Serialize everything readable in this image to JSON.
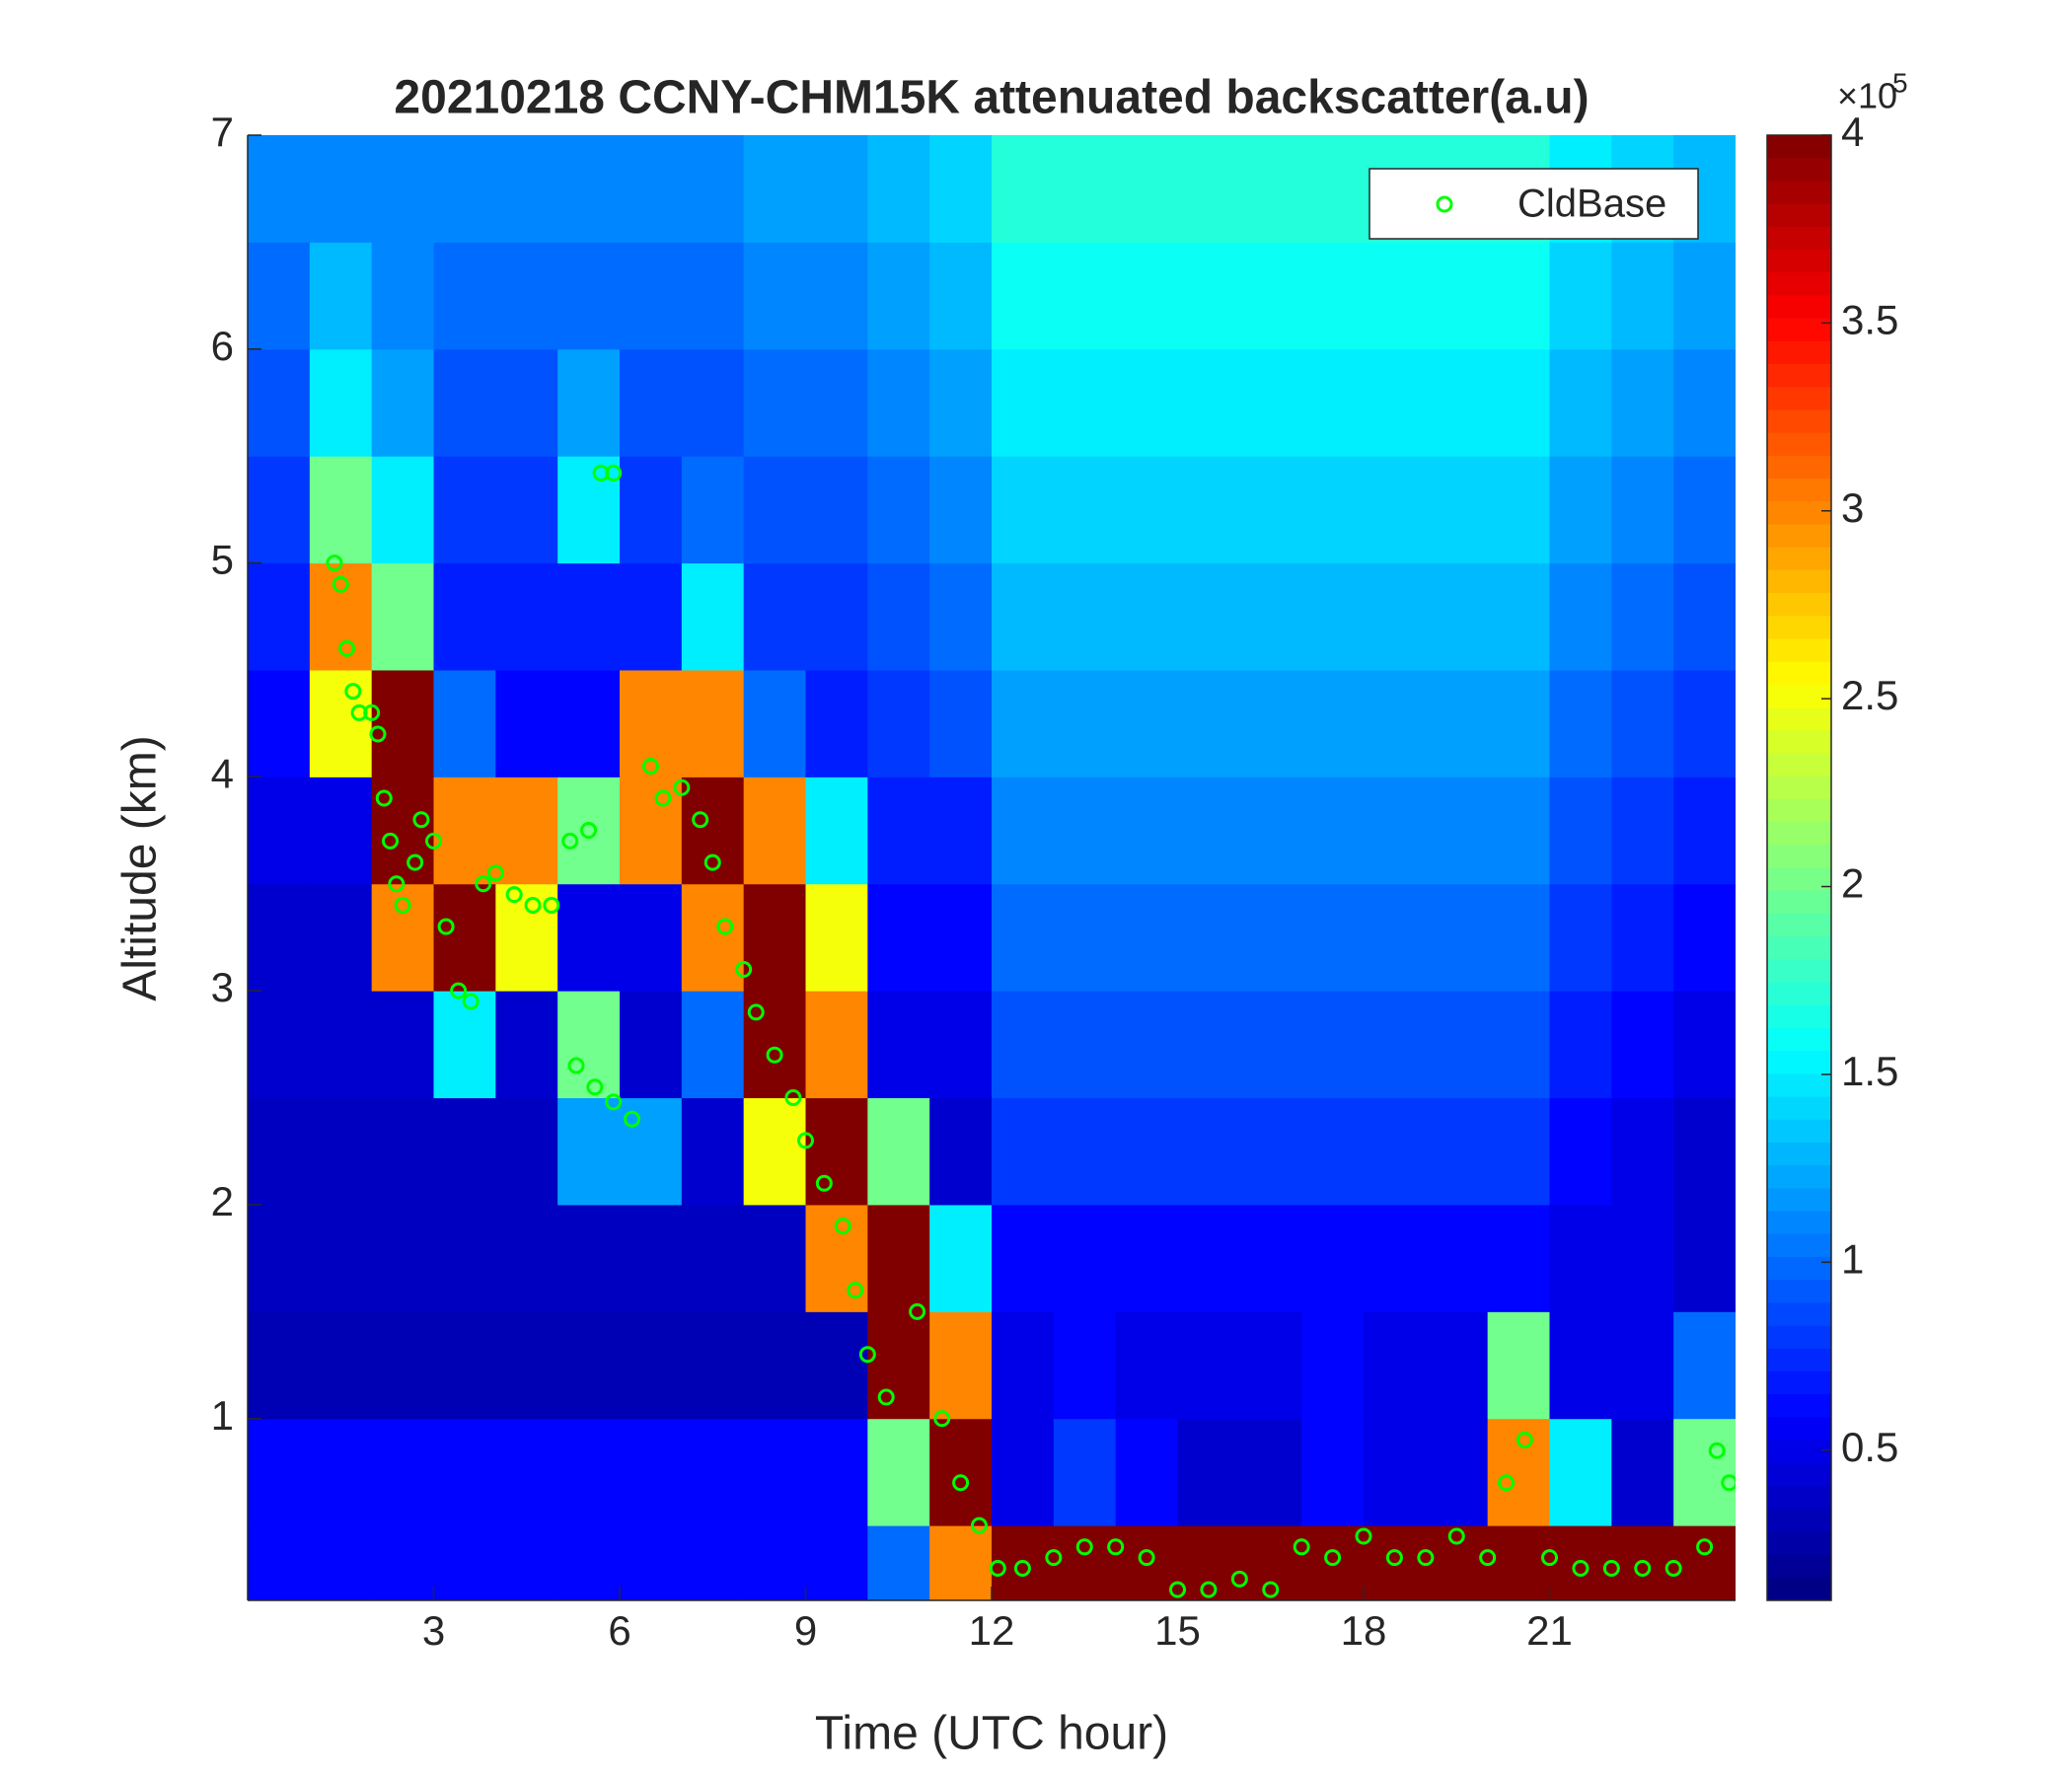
{
  "chart_data": {
    "type": "heatmap",
    "title": "20210218 CCNY-CHM15K attenuated backscatter(a.u)",
    "x_label": "Time (UTC hour)",
    "y_label": "Altitude (km)",
    "xlim": [
      0,
      24
    ],
    "ylim": [
      0.15,
      7
    ],
    "xticks": [
      3,
      6,
      9,
      12,
      15,
      18,
      21
    ],
    "yticks": [
      1,
      2,
      3,
      4,
      5,
      6,
      7
    ],
    "colormap": "jet",
    "clim": [
      0.1,
      4
    ],
    "cticks": [
      0.5,
      1,
      1.5,
      2,
      2.5,
      3,
      3.5,
      4
    ],
    "colorbar_multiplier_base": "×10",
    "colorbar_multiplier_exponent": "5",
    "x_edges": [
      0,
      1,
      2,
      3,
      4,
      5,
      6,
      7,
      8,
      9,
      10,
      11,
      12,
      13,
      14,
      15,
      16,
      17,
      18,
      19,
      20,
      21,
      22,
      23,
      24
    ],
    "y_edges": [
      0.15,
      0.5,
      1,
      1.5,
      2,
      2.5,
      3,
      3.5,
      4,
      4.5,
      5,
      5.5,
      6,
      6.5,
      7
    ],
    "z": [
      [
        0.6,
        0.6,
        0.6,
        0.6,
        0.6,
        0.6,
        0.6,
        0.6,
        0.6,
        0.6,
        1.0,
        3,
        4,
        4,
        4,
        4,
        4,
        4,
        4,
        4,
        4,
        4,
        4,
        4
      ],
      [
        0.6,
        0.6,
        0.6,
        0.6,
        0.6,
        0.6,
        0.6,
        0.6,
        0.6,
        0.6,
        2,
        4,
        0.5,
        0.8,
        0.6,
        0.4,
        0.4,
        0.6,
        0.5,
        0.5,
        3,
        1.5,
        0.4,
        2
      ],
      [
        0.3,
        0.3,
        0.3,
        0.3,
        0.3,
        0.3,
        0.3,
        0.3,
        0.3,
        0.3,
        4,
        3,
        0.5,
        0.6,
        0.5,
        0.5,
        0.5,
        0.6,
        0.5,
        0.5,
        2,
        0.5,
        0.5,
        1
      ],
      [
        0.35,
        0.35,
        0.35,
        0.35,
        0.35,
        0.35,
        0.35,
        0.35,
        0.35,
        3,
        4,
        1.5,
        0.6,
        0.6,
        0.6,
        0.6,
        0.6,
        0.6,
        0.6,
        0.6,
        0.6,
        0.5,
        0.5,
        0.4
      ],
      [
        0.35,
        0.35,
        0.35,
        0.35,
        0.35,
        1.2,
        1.2,
        0.4,
        2.5,
        4,
        2,
        0.4,
        0.8,
        0.8,
        0.8,
        0.8,
        0.8,
        0.8,
        0.8,
        0.8,
        0.8,
        0.6,
        0.5,
        0.4
      ],
      [
        0.4,
        0.4,
        0.4,
        1.5,
        0.4,
        2,
        0.4,
        1,
        4,
        3,
        0.5,
        0.5,
        0.9,
        0.9,
        0.9,
        0.9,
        0.9,
        0.9,
        0.9,
        0.9,
        0.9,
        0.7,
        0.6,
        0.5
      ],
      [
        0.4,
        0.4,
        3,
        4,
        2.5,
        0.5,
        0.5,
        3,
        4,
        2.5,
        0.6,
        0.6,
        1.0,
        1.0,
        1.0,
        1.0,
        1.0,
        1.0,
        1.0,
        1.0,
        1.0,
        0.8,
        0.7,
        0.6
      ],
      [
        0.5,
        0.5,
        4,
        3,
        3,
        2,
        3,
        4,
        3,
        1.5,
        0.7,
        0.7,
        1.1,
        1.1,
        1.1,
        1.1,
        1.1,
        1.1,
        1.1,
        1.1,
        1.1,
        0.9,
        0.8,
        0.7
      ],
      [
        0.6,
        2.5,
        4,
        1,
        0.6,
        0.6,
        3,
        3,
        1,
        0.7,
        0.8,
        0.9,
        1.2,
        1.2,
        1.2,
        1.2,
        1.2,
        1.2,
        1.2,
        1.2,
        1.2,
        1.0,
        0.9,
        0.8
      ],
      [
        0.7,
        3,
        2,
        0.7,
        0.7,
        0.7,
        0.7,
        1.5,
        0.8,
        0.8,
        0.9,
        1.0,
        1.3,
        1.3,
        1.3,
        1.3,
        1.3,
        1.3,
        1.3,
        1.3,
        1.3,
        1.1,
        1.0,
        0.9
      ],
      [
        0.8,
        2,
        1.5,
        0.8,
        0.8,
        1.5,
        0.8,
        1,
        0.9,
        0.9,
        1.0,
        1.1,
        1.4,
        1.4,
        1.4,
        1.4,
        1.4,
        1.4,
        1.4,
        1.4,
        1.4,
        1.2,
        1.1,
        1.0
      ],
      [
        0.9,
        1.5,
        1.2,
        0.9,
        0.9,
        1.2,
        0.9,
        0.9,
        1.0,
        1.0,
        1.1,
        1.2,
        1.5,
        1.5,
        1.5,
        1.5,
        1.5,
        1.5,
        1.5,
        1.5,
        1.5,
        1.3,
        1.2,
        1.1
      ],
      [
        1.0,
        1.3,
        1.1,
        1.0,
        1.0,
        1.0,
        1.0,
        1.0,
        1.1,
        1.1,
        1.2,
        1.3,
        1.6,
        1.6,
        1.6,
        1.6,
        1.6,
        1.6,
        1.6,
        1.6,
        1.6,
        1.4,
        1.3,
        1.2
      ],
      [
        1.1,
        1.1,
        1.1,
        1.1,
        1.1,
        1.1,
        1.1,
        1.1,
        1.2,
        1.2,
        1.3,
        1.4,
        1.7,
        1.7,
        1.7,
        1.7,
        1.7,
        1.7,
        1.7,
        1.7,
        1.7,
        1.5,
        1.4,
        1.3
      ]
    ],
    "legend_position": "northeast",
    "series": [
      {
        "name": "CldBase",
        "type": "scatter",
        "color": "#00ff00",
        "x": [
          1.4,
          1.5,
          1.6,
          1.7,
          1.8,
          2.0,
          2.1,
          2.2,
          2.3,
          2.4,
          2.5,
          2.7,
          2.8,
          3.0,
          3.2,
          3.4,
          3.6,
          3.8,
          4.0,
          4.3,
          4.6,
          4.9,
          5.2,
          5.5,
          5.7,
          5.9,
          5.3,
          5.6,
          5.9,
          6.2,
          6.5,
          6.7,
          7.0,
          7.3,
          7.5,
          7.7,
          8.0,
          8.2,
          8.5,
          8.8,
          9.0,
          9.3,
          9.6,
          9.8,
          10.0,
          10.3,
          10.8,
          11.2,
          11.5,
          11.8,
          12.1,
          12.5,
          13.0,
          13.5,
          14.0,
          14.5,
          15.0,
          15.5,
          16.0,
          16.5,
          17.0,
          17.5,
          18.0,
          18.5,
          19.0,
          19.5,
          20.0,
          20.3,
          20.6,
          21.0,
          21.5,
          22.0,
          22.5,
          23.0,
          23.5,
          23.7,
          23.9
        ],
        "y": [
          5.0,
          4.9,
          4.6,
          4.4,
          4.3,
          4.3,
          4.2,
          3.9,
          3.7,
          3.5,
          3.4,
          3.6,
          3.8,
          3.7,
          3.3,
          3.0,
          2.95,
          3.5,
          3.55,
          3.45,
          3.4,
          3.4,
          3.7,
          3.75,
          5.42,
          5.42,
          2.65,
          2.55,
          2.48,
          2.4,
          4.05,
          3.9,
          3.95,
          3.8,
          3.6,
          3.3,
          3.1,
          2.9,
          2.7,
          2.5,
          2.3,
          2.1,
          1.9,
          1.6,
          1.3,
          1.1,
          1.5,
          1.0,
          0.7,
          0.5,
          0.3,
          0.3,
          0.35,
          0.4,
          0.4,
          0.35,
          0.2,
          0.2,
          0.25,
          0.2,
          0.4,
          0.35,
          0.45,
          0.35,
          0.35,
          0.45,
          0.35,
          0.7,
          0.9,
          0.35,
          0.3,
          0.3,
          0.3,
          0.3,
          0.4,
          0.85,
          0.7
        ]
      }
    ]
  }
}
